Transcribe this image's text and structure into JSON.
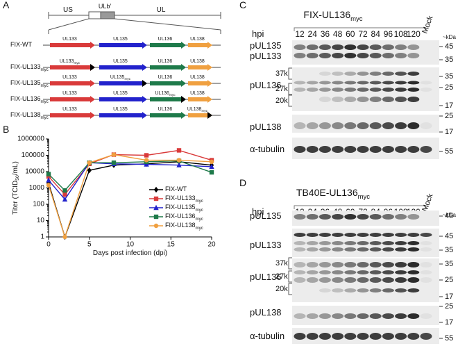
{
  "panel_a": {
    "label": "A",
    "regions": [
      "US",
      "ULb′",
      "UL"
    ],
    "gene_colors": [
      "#d93a3a",
      "#2222cc",
      "#1e7a4a",
      "#f0a040"
    ],
    "constructs": [
      {
        "name": "FIX-WT",
        "genes": [
          {
            "name": "UL133"
          },
          {
            "name": "UL135"
          },
          {
            "name": "UL136"
          },
          {
            "name": "UL138"
          }
        ]
      },
      {
        "name": "FIX-UL133",
        "sub": "myc",
        "genes": [
          {
            "name": "UL133",
            "sub": "myc"
          },
          {
            "name": "UL135"
          },
          {
            "name": "UL136"
          },
          {
            "name": "UL138"
          }
        ]
      },
      {
        "name": "FIX-UL135",
        "sub": "myc",
        "genes": [
          {
            "name": "UL133"
          },
          {
            "name": "UL135",
            "sub": "myc"
          },
          {
            "name": "UL136"
          },
          {
            "name": "UL138"
          }
        ]
      },
      {
        "name": "FIX-UL136",
        "sub": "myc",
        "genes": [
          {
            "name": "UL133"
          },
          {
            "name": "UL135"
          },
          {
            "name": "UL136",
            "sub": "myc"
          },
          {
            "name": "UL138"
          }
        ]
      },
      {
        "name": "FIX-UL138",
        "sub": "myc",
        "genes": [
          {
            "name": "UL133"
          },
          {
            "name": "UL135"
          },
          {
            "name": "UL136"
          },
          {
            "name": "UL138",
            "sub": "myc"
          }
        ]
      }
    ]
  },
  "chart_data": {
    "type": "line",
    "panel_label": "B",
    "xlabel": "Days post infection (dpi)",
    "ylabel": "Titer (TCID",
    "ylabel_sub": "50",
    "ylabel_tail": "/mL)",
    "x": [
      0,
      2,
      5,
      8,
      12,
      16,
      20
    ],
    "xlim": [
      0,
      20
    ],
    "xticks": [
      0,
      5,
      10,
      15,
      20
    ],
    "ylim": [
      1,
      1000000
    ],
    "yticks": [
      1,
      10,
      100,
      1000,
      10000,
      100000,
      1000000
    ],
    "log_y": true,
    "series": [
      {
        "name": "FIX-WT",
        "color": "#000000",
        "marker": "diamond",
        "values": [
          2000,
          1,
          12000,
          25000,
          30000,
          40000,
          25000
        ]
      },
      {
        "name": "FIX-UL133",
        "name_sub": "myc",
        "color": "#d93a3a",
        "marker": "square",
        "values": [
          5000,
          400,
          30000,
          110000,
          100000,
          200000,
          50000
        ]
      },
      {
        "name": "FIX-UL135",
        "name_sub": "myc",
        "color": "#2222cc",
        "marker": "triangle",
        "values": [
          3000,
          200,
          35000,
          30000,
          28000,
          25000,
          20000
        ]
      },
      {
        "name": "FIX-UL136",
        "name_sub": "myc",
        "color": "#1e7a4a",
        "marker": "square",
        "values": [
          7000,
          700,
          35000,
          35000,
          40000,
          45000,
          9000
        ]
      },
      {
        "name": "FIX-UL138",
        "name_sub": "myc",
        "color": "#f0a040",
        "marker": "circle",
        "values": [
          1500,
          1,
          35000,
          110000,
          50000,
          50000,
          40000
        ]
      }
    ]
  },
  "panel_c": {
    "label": "C",
    "title": "FIX-UL136",
    "title_sub": "myc",
    "hpi_label": "hpi",
    "lanes": [
      12,
      24,
      36,
      48,
      60,
      72,
      84,
      96,
      108,
      120
    ],
    "mock": "Mock",
    "kda_label": "~kDa",
    "rows": [
      {
        "names": [
          "pUL135",
          "pUL133"
        ],
        "markers": [
          45,
          35
        ]
      },
      {
        "names": [
          "pUL136"
        ],
        "brackets": [
          "37k",
          "27k",
          "20k"
        ],
        "markers": [
          35,
          25,
          17
        ]
      },
      {
        "names": [
          "pUL138"
        ],
        "markers": [
          25,
          17
        ]
      },
      {
        "names": [
          "α-tubulin"
        ],
        "markers": [
          55
        ]
      }
    ]
  },
  "panel_d": {
    "label": "D",
    "title": "TB40E-UL136",
    "title_sub": "myc",
    "hpi_label": "hpi",
    "lanes": [
      12,
      24,
      36,
      48,
      60,
      72,
      84,
      96,
      108,
      120
    ],
    "mock": "Mock",
    "kda_label": "~kDa",
    "rows": [
      {
        "names": [
          "pUL135"
        ],
        "markers": [
          45
        ]
      },
      {
        "names": [
          "pUL133"
        ],
        "markers": [
          45,
          35
        ]
      },
      {
        "names": [
          "pUL136"
        ],
        "brackets": [
          "37k",
          "27k",
          "20k"
        ],
        "markers": [
          35,
          25,
          17
        ]
      },
      {
        "names": [
          "pUL138"
        ],
        "markers": [
          25,
          17
        ]
      },
      {
        "names": [
          "α-tubulin"
        ],
        "markers": [
          55
        ]
      }
    ]
  }
}
